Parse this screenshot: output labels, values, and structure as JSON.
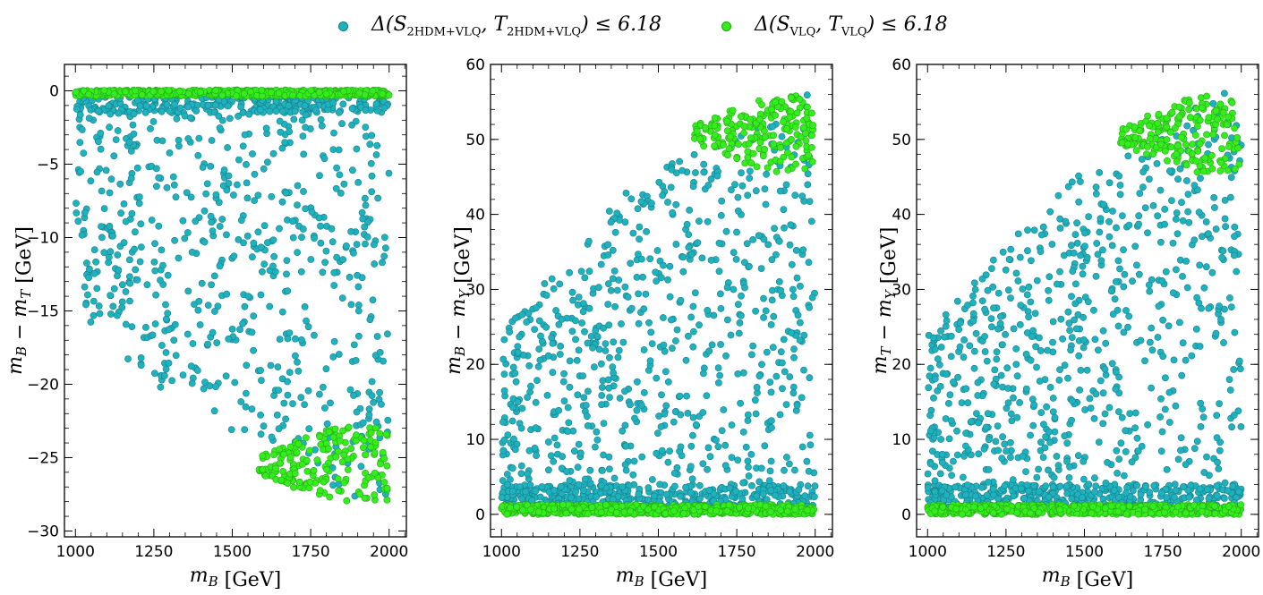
{
  "colors": {
    "teal": "#1eb2bf",
    "teal_edge": "#1a7f8a",
    "green": "#33ee1c",
    "green_edge": "#2aa81a"
  },
  "legend": [
    {
      "key": "teal",
      "text": "Δ(S2HDM+VLQ, T2HDM+VLQ) ≤ 6.18",
      "label_prefix": "Δ(S",
      "sub1": "2HDM+VLQ",
      "mid": ", T",
      "sub2": "2HDM+VLQ",
      "suffix": ") ≤ 6.18"
    },
    {
      "key": "green",
      "text": "Δ(SVLQ, TVLQ) ≤ 6.18",
      "label_prefix": "Δ(S",
      "sub1": "VLQ",
      "mid": ", T",
      "sub2": "VLQ",
      "suffix": ") ≤ 6.18"
    }
  ],
  "chart_data": [
    {
      "type": "scatter",
      "title": "",
      "xlabel": "m_B [GeV]",
      "ylabel": "m_B − m_T [GeV]",
      "xlim": [
        965,
        2055
      ],
      "ylim": [
        -30.4,
        1.8
      ],
      "xticks": [
        1000,
        1250,
        1500,
        1750,
        2000
      ],
      "yticks": [
        0,
        -5,
        -10,
        -15,
        -20,
        -25,
        -30
      ],
      "ytick_labels": [
        "0",
        "−5",
        "−10",
        "−15",
        "−20",
        "−25",
        "−30"
      ],
      "series": [
        {
          "name": "Δ(S2HDM+VLQ, T2HDM+VLQ) ≤ 6.18",
          "color_key": "teal",
          "description": "dense band near 0 to −2, scattered points down to about −28 with upper envelope at low m_B",
          "regions": [
            {
              "x": [
                1000,
                2000
              ],
              "y": [
                -1.5,
                -0.3
              ],
              "count": 260
            },
            {
              "x": [
                1000,
                2000
              ],
              "y_edge": [
                [
                  1000,
                  -15
                ],
                [
                  1250,
                  -20
                ],
                [
                  1400,
                  -22
                ],
                [
                  1550,
                  -24
                ],
                [
                  1700,
                  -25
                ],
                [
                  1800,
                  -27
                ],
                [
                  2000,
                  -28.5
                ]
              ],
              "y_top": -1,
              "count": 620
            }
          ]
        },
        {
          "name": "Δ(SVLQ, TVLQ) ≤ 6.18",
          "color_key": "green",
          "regions": [
            {
              "x": [
                1000,
                2000
              ],
              "y": [
                -0.35,
                0.05
              ],
              "count": 650,
              "band": true
            },
            {
              "x": [
                1585,
                1995
              ],
              "y": [
                -28.2,
                -22.8
              ],
              "count": 190,
              "blob": "bottom-right"
            }
          ]
        }
      ]
    },
    {
      "type": "scatter",
      "xlabel": "m_B [GeV]",
      "ylabel": "m_B − m_Y [GeV]",
      "xlim": [
        965,
        2055
      ],
      "ylim": [
        -3,
        60
      ],
      "xticks": [
        1000,
        1250,
        1500,
        1750,
        2000
      ],
      "yticks": [
        0,
        10,
        20,
        30,
        40,
        50,
        60
      ],
      "ytick_labels": [
        "0",
        "10",
        "20",
        "30",
        "40",
        "50",
        "60"
      ],
      "series": [
        {
          "name": "Δ(S2HDM+VLQ, T2HDM+VLQ) ≤ 6.18",
          "color_key": "teal",
          "regions": [
            {
              "x": [
                1000,
                2000
              ],
              "y": [
                0.5,
                4
              ],
              "count": 420
            },
            {
              "x": [
                1000,
                2000
              ],
              "y_edge": [
                [
                  1000,
                  24
                ],
                [
                  1200,
                  34
                ],
                [
                  1400,
                  43
                ],
                [
                  1550,
                  47
                ],
                [
                  1700,
                  50
                ],
                [
                  1900,
                  56
                ],
                [
                  2000,
                  57
                ]
              ],
              "y_bottom": 3,
              "count": 700
            }
          ]
        },
        {
          "name": "Δ(SVLQ, TVLQ) ≤ 6.18",
          "color_key": "green",
          "regions": [
            {
              "x": [
                1000,
                2000
              ],
              "y": [
                0,
                1.3
              ],
              "count": 650,
              "band": true
            },
            {
              "x": [
                1615,
                1995
              ],
              "y": [
                45.5,
                55.8
              ],
              "count": 190,
              "blob": "top-right"
            }
          ]
        }
      ]
    },
    {
      "type": "scatter",
      "xlabel": "m_B [GeV]",
      "ylabel": "m_T − m_Y [GeV]",
      "xlim": [
        965,
        2055
      ],
      "ylim": [
        -3,
        60
      ],
      "xticks": [
        1000,
        1250,
        1500,
        1750,
        2000
      ],
      "yticks": [
        0,
        10,
        20,
        30,
        40,
        50,
        60
      ],
      "ytick_labels": [
        "0",
        "10",
        "20",
        "30",
        "40",
        "50",
        "60"
      ],
      "series": [
        {
          "name": "Δ(S2HDM+VLQ, T2HDM+VLQ) ≤ 6.18",
          "color_key": "teal",
          "regions": [
            {
              "x": [
                1000,
                2000
              ],
              "y": [
                0.5,
                4
              ],
              "count": 420
            },
            {
              "x": [
                1000,
                2000
              ],
              "y_edge": [
                [
                  1000,
                  24
                ],
                [
                  1200,
                  34
                ],
                [
                  1400,
                  43
                ],
                [
                  1550,
                  47
                ],
                [
                  1700,
                  50
                ],
                [
                  1900,
                  56
                ],
                [
                  2000,
                  57
                ]
              ],
              "y_bottom": 3,
              "count": 700
            }
          ]
        },
        {
          "name": "Δ(SVLQ, TVLQ) ≤ 6.18",
          "color_key": "green",
          "regions": [
            {
              "x": [
                1000,
                2000
              ],
              "y": [
                0,
                1.3
              ],
              "count": 650,
              "band": true
            },
            {
              "x": [
                1615,
                1995
              ],
              "y": [
                45.5,
                55.8
              ],
              "count": 190,
              "blob": "top-right"
            }
          ]
        }
      ]
    }
  ]
}
